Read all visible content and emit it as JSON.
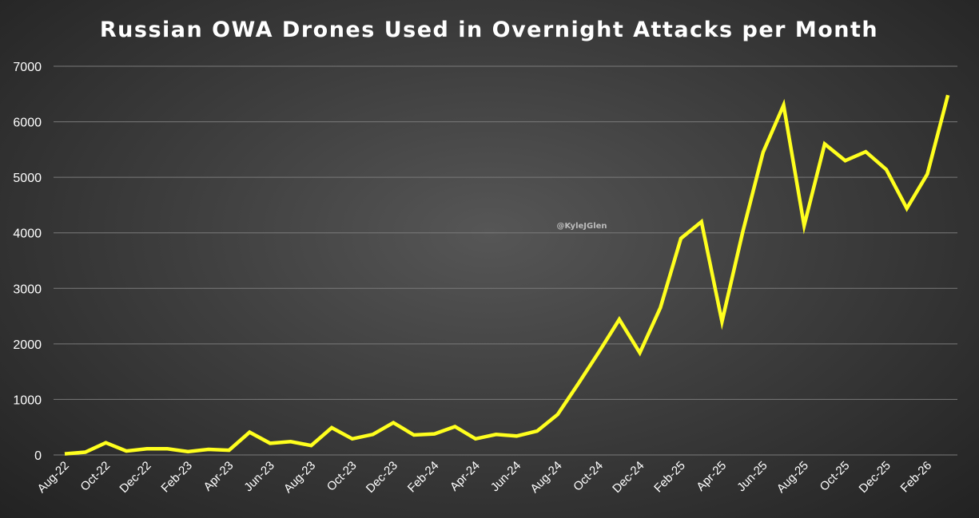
{
  "chart_data": {
    "type": "line",
    "title": "Russian OWA Drones Used in Overnight Attacks per Month",
    "watermark": "@KyleJGlen",
    "x": [
      "Aug-22",
      "Sep-22",
      "Oct-22",
      "Nov-22",
      "Dec-22",
      "Jan-23",
      "Feb-23",
      "Mar-23",
      "Apr-23",
      "May-23",
      "Jun-23",
      "Jul-23",
      "Aug-23",
      "Sep-23",
      "Oct-23",
      "Nov-23",
      "Dec-23",
      "Jan-24",
      "Feb-24",
      "Mar-24",
      "Apr-24",
      "May-24",
      "Jun-24",
      "Jul-24",
      "Aug-24",
      "Sep-24",
      "Oct-24",
      "Nov-24",
      "Dec-24",
      "Jan-25",
      "Feb-25",
      "Mar-25",
      "Apr-25",
      "May-25",
      "Jun-25",
      "Jul-25",
      "Aug-25",
      "Sep-25",
      "Oct-25",
      "Nov-25",
      "Dec-25",
      "Jan-26",
      "Feb-26",
      "Mar-26"
    ],
    "x_tick_labels": [
      "Aug-22",
      "Oct-22",
      "Dec-22",
      "Feb-23",
      "Apr-23",
      "Jun-23",
      "Aug-23",
      "Oct-23",
      "Dec-23",
      "Feb-24",
      "Apr-24",
      "Jun-24",
      "Aug-24",
      "Oct-24",
      "Dec-24",
      "Feb-25",
      "Apr-25",
      "Jun-25",
      "Aug-25",
      "Oct-25",
      "Dec-25",
      "Feb-26"
    ],
    "series": [
      {
        "color": "#ffff1e",
        "values": [
          20,
          50,
          220,
          70,
          110,
          110,
          60,
          100,
          85,
          410,
          210,
          240,
          170,
          490,
          290,
          370,
          580,
          360,
          380,
          510,
          290,
          370,
          340,
          430,
          730,
          1280,
          1850,
          2440,
          1840,
          2650,
          3900,
          4200,
          2400,
          4000,
          5450,
          6300,
          4130,
          5600,
          5300,
          5460,
          5140,
          4440,
          5060,
          6480
        ]
      }
    ],
    "yticks": [
      0,
      1000,
      2000,
      3000,
      4000,
      5000,
      6000,
      7000
    ],
    "ylim": [
      0,
      7000
    ],
    "xlabel": "",
    "ylabel": "",
    "grid": true,
    "legend": "none"
  }
}
